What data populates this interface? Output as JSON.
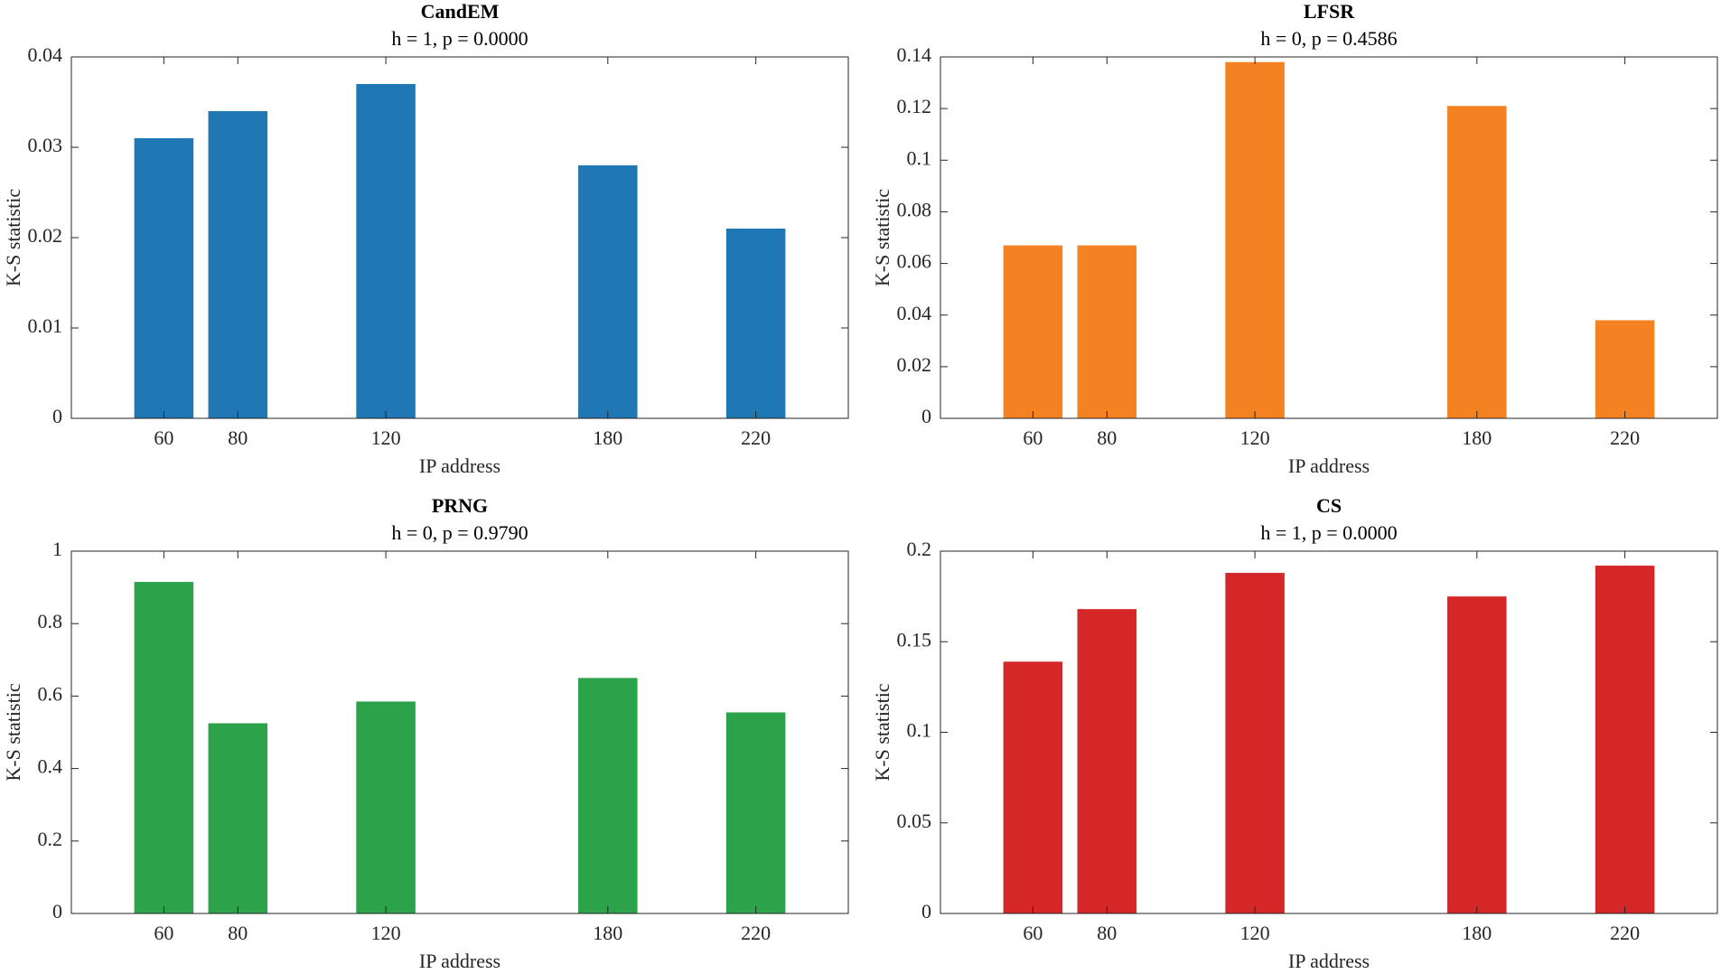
{
  "chart_data": [
    {
      "type": "bar",
      "title": "CandEM",
      "subtitle": "h = 1, p = 0.0000",
      "x_label": "IP address",
      "y_label": "K-S statistic",
      "x": [
        60,
        80,
        120,
        180,
        220
      ],
      "values": [
        0.031,
        0.034,
        0.037,
        0.028,
        0.021
      ],
      "color": "#1f77b4",
      "xlim": [
        35,
        245
      ],
      "xticks": [
        60,
        80,
        120,
        180,
        220
      ],
      "ylim": [
        0,
        0.04
      ],
      "yticks": [
        0,
        0.01,
        0.02,
        0.03,
        0.04
      ]
    },
    {
      "type": "bar",
      "title": "LFSR",
      "subtitle": "h = 0, p = 0.4586",
      "x_label": "IP address",
      "y_label": "K-S statistic",
      "x": [
        60,
        80,
        120,
        180,
        220
      ],
      "values": [
        0.067,
        0.067,
        0.138,
        0.121,
        0.038
      ],
      "color": "#f58220",
      "xlim": [
        35,
        245
      ],
      "xticks": [
        60,
        80,
        120,
        180,
        220
      ],
      "ylim": [
        0,
        0.14
      ],
      "yticks": [
        0,
        0.02,
        0.04,
        0.06,
        0.08,
        0.1,
        0.12,
        0.14
      ]
    },
    {
      "type": "bar",
      "title": "PRNG",
      "subtitle": "h = 0, p = 0.9790",
      "x_label": "IP address",
      "y_label": "K-S statistic",
      "x": [
        60,
        80,
        120,
        180,
        220
      ],
      "values": [
        0.915,
        0.525,
        0.585,
        0.65,
        0.555
      ],
      "color": "#2ca24a",
      "xlim": [
        35,
        245
      ],
      "xticks": [
        60,
        80,
        120,
        180,
        220
      ],
      "ylim": [
        0,
        1
      ],
      "yticks": [
        0,
        0.2,
        0.4,
        0.6,
        0.8,
        1
      ]
    },
    {
      "type": "bar",
      "title": "CS",
      "subtitle": "h = 1, p = 0.0000",
      "x_label": "IP address",
      "y_label": "K-S statistic",
      "x": [
        60,
        80,
        120,
        180,
        220
      ],
      "values": [
        0.139,
        0.168,
        0.188,
        0.175,
        0.192
      ],
      "color": "#d62728",
      "xlim": [
        35,
        245
      ],
      "xticks": [
        60,
        80,
        120,
        180,
        220
      ],
      "ylim": [
        0,
        0.2
      ],
      "yticks": [
        0,
        0.05,
        0.1,
        0.15,
        0.2
      ]
    }
  ]
}
